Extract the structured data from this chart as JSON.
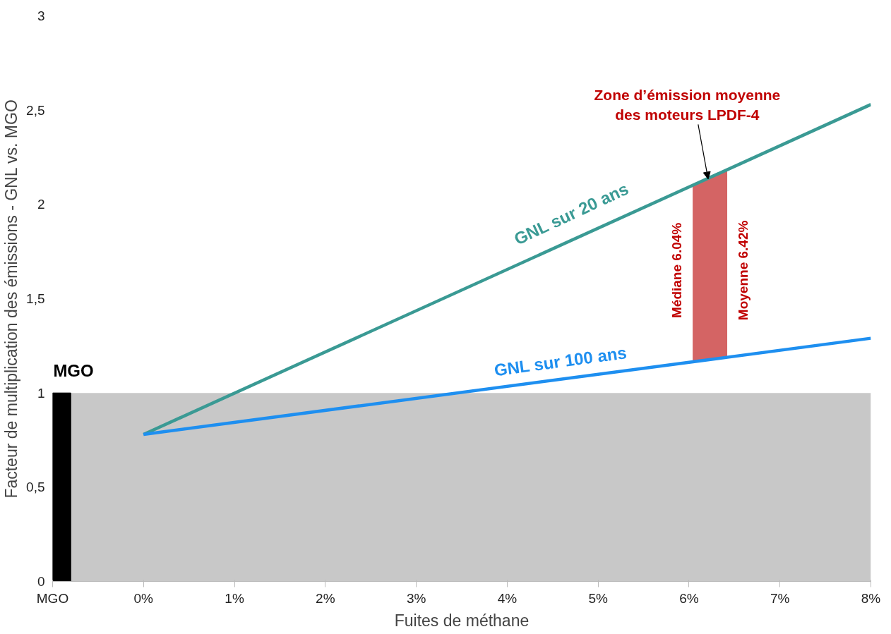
{
  "chart_data": {
    "type": "line",
    "xlabel": "Fuites de méthane",
    "ylabel": "Facteur de multiplication des émissions - GNL vs. MGO",
    "xlim": [
      -1,
      8
    ],
    "xticks": [
      {
        "value": -1,
        "label": "MGO"
      },
      {
        "value": 0,
        "label": "0%"
      },
      {
        "value": 1,
        "label": "1%"
      },
      {
        "value": 2,
        "label": "2%"
      },
      {
        "value": 3,
        "label": "3%"
      },
      {
        "value": 4,
        "label": "4%"
      },
      {
        "value": 5,
        "label": "5%"
      },
      {
        "value": 6,
        "label": "6%"
      },
      {
        "value": 7,
        "label": "7%"
      },
      {
        "value": 8,
        "label": "8%"
      }
    ],
    "ylim": [
      0,
      3
    ],
    "yticks": [
      0,
      {
        "value": 0.5,
        "label": "0,5"
      },
      1,
      {
        "value": 1.5,
        "label": "1,5"
      },
      2,
      {
        "value": 2.5,
        "label": "2,5"
      },
      3
    ],
    "grid": false,
    "legend": false,
    "series": [
      {
        "type": "bar",
        "name": "MGO",
        "color": "#000000",
        "x": [
          -0.9
        ],
        "values": [
          1
        ]
      },
      {
        "name": "GNL sur 20 ans",
        "color": "#3a9a94",
        "x": [
          0,
          8
        ],
        "values": [
          0.78,
          2.53
        ]
      },
      {
        "name": "GNL sur 100 ans",
        "color": "#1e8ff0",
        "x": [
          0,
          8
        ],
        "values": [
          0.78,
          1.29
        ]
      }
    ],
    "bands": [
      {
        "axis": "y",
        "from": 0,
        "to": 1,
        "color": "#c8c8c8"
      },
      {
        "axis": "x",
        "from": 6.04,
        "to": 6.42,
        "color": "#d46464",
        "label": "Zone d’émission moyenne\ndes moteurs LPDF-4"
      }
    ],
    "annotations": [
      {
        "text": "Médiane 6.04%",
        "x": 6.04,
        "y": 1.65
      },
      {
        "text": "Moyenne 6.42%",
        "x": 6.42,
        "y": 1.65
      }
    ]
  }
}
